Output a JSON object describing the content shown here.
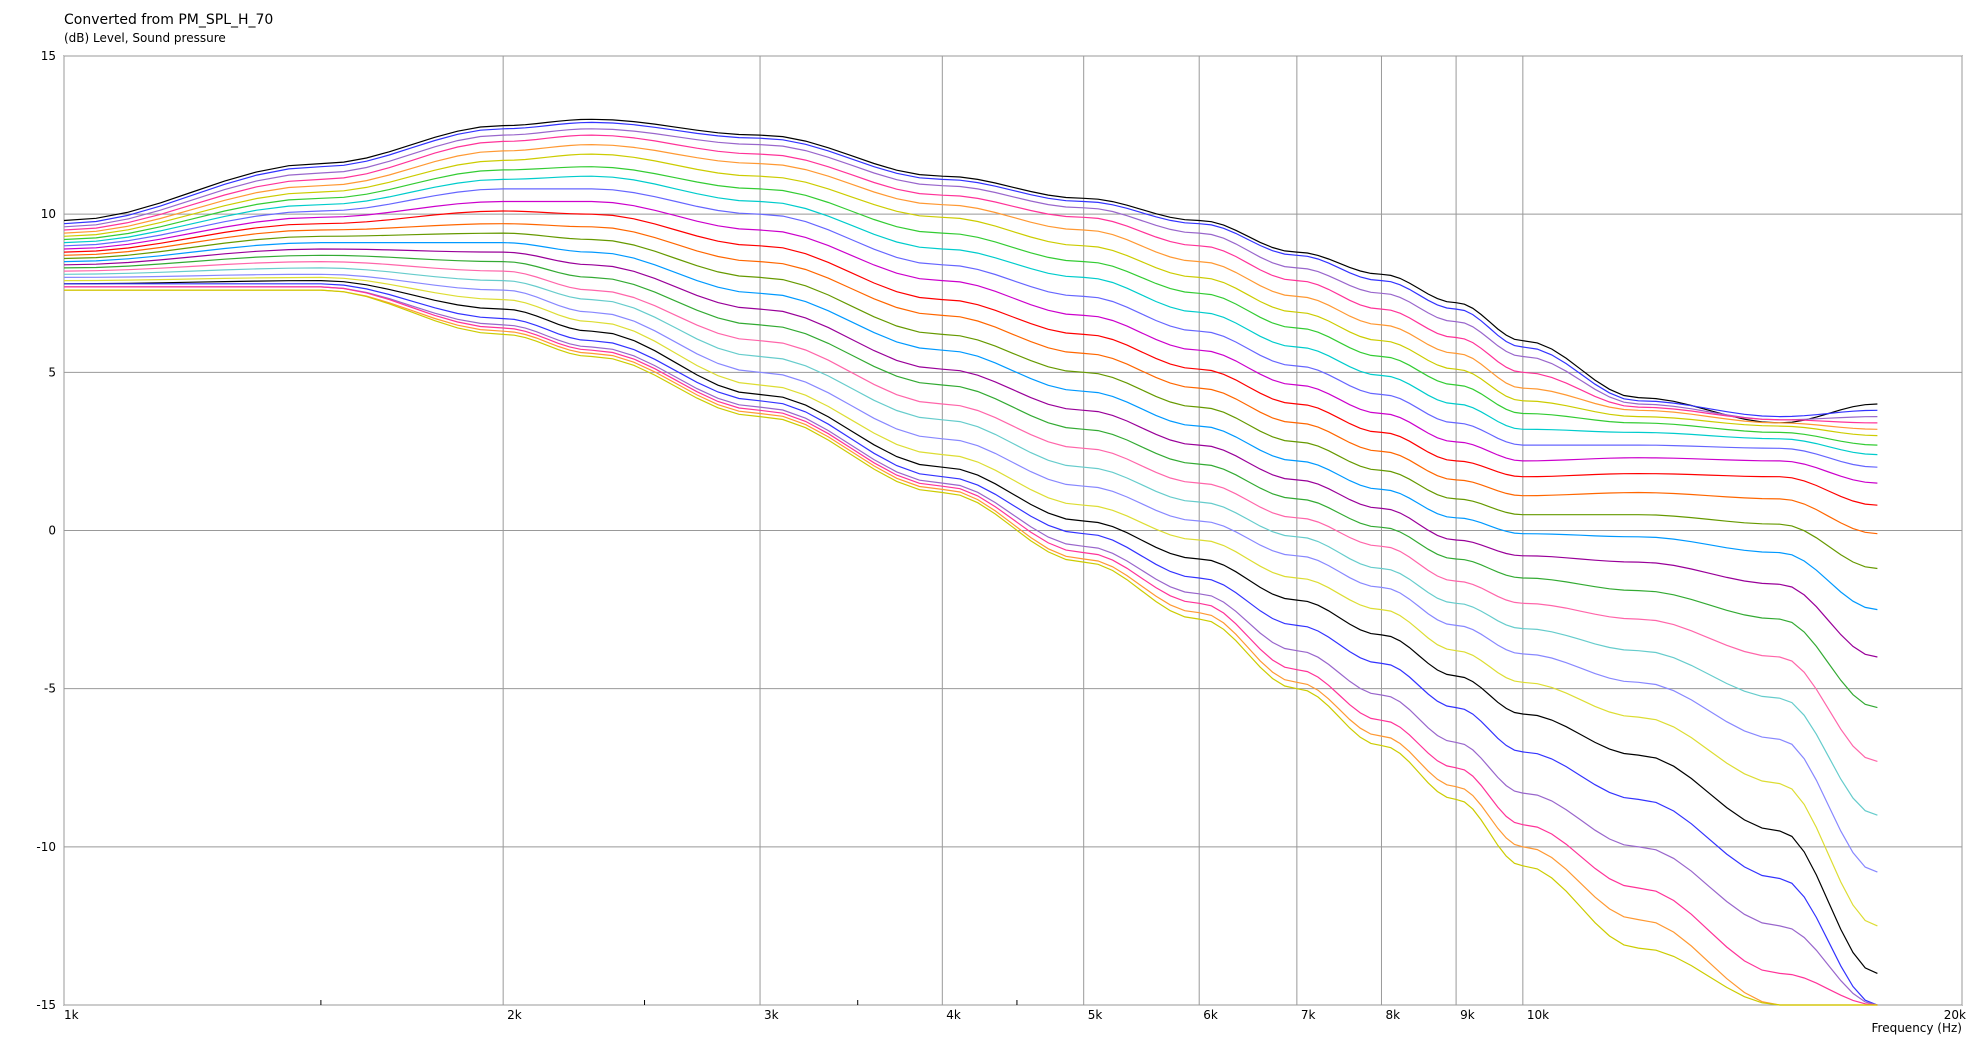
{
  "chart_data": {
    "type": "line",
    "title": "Converted from PM_SPL_H_70",
    "ylabel": "(dB)  Level, Sound pressure",
    "xlabel": "Frequency  (Hz)",
    "x_scale": "log",
    "xlim": [
      1000,
      20000
    ],
    "ylim": [
      -15,
      15
    ],
    "grid": true,
    "legend": "none",
    "y_ticks": [
      15,
      10,
      5,
      0,
      -5,
      -10,
      -15
    ],
    "y_tick_labels": [
      "15",
      "10",
      "5",
      "0",
      "-5",
      "-10",
      "-15"
    ],
    "x_major_ticks": [
      1000,
      2000,
      3000,
      4000,
      5000,
      6000,
      7000,
      8000,
      9000,
      10000,
      20000
    ],
    "x_major_tick_labels": [
      "1k",
      "2k",
      "3k",
      "4k",
      "5k",
      "6k",
      "7k",
      "8k",
      "9k",
      "10k",
      "20k"
    ],
    "x_minor_ticks": [
      1500,
      2500,
      3500,
      4500
    ],
    "colors": [
      "#000000",
      "#3333ff",
      "#9966cc",
      "#ff3399",
      "#ff9933",
      "#cccc00",
      "#33cc33",
      "#00cccc",
      "#6666ff",
      "#cc00cc",
      "#ff0000",
      "#ff6600",
      "#669900",
      "#0099ff",
      "#990099",
      "#33aa33",
      "#ff66aa",
      "#66cccc",
      "#8888ff",
      "#dddd33"
    ],
    "x": [
      1000,
      1500,
      2000,
      2300,
      3000,
      4000,
      5000,
      6000,
      7000,
      8000,
      9000,
      10000,
      12000,
      15000,
      17500
    ],
    "series": [
      {
        "values": [
          9.8,
          11.6,
          12.8,
          13.0,
          12.5,
          11.2,
          10.5,
          9.8,
          8.8,
          8.1,
          7.2,
          6.0,
          4.2,
          3.4,
          4.0
        ]
      },
      {
        "values": [
          9.7,
          11.5,
          12.7,
          12.9,
          12.4,
          11.1,
          10.4,
          9.7,
          8.7,
          7.9,
          7.0,
          5.8,
          4.1,
          3.6,
          3.8
        ]
      },
      {
        "values": [
          9.6,
          11.3,
          12.5,
          12.7,
          12.2,
          10.9,
          10.2,
          9.4,
          8.3,
          7.5,
          6.6,
          5.5,
          4.0,
          3.5,
          3.6
        ]
      },
      {
        "values": [
          9.5,
          11.1,
          12.3,
          12.5,
          11.9,
          10.6,
          9.9,
          9.0,
          7.9,
          7.0,
          6.1,
          5.0,
          3.9,
          3.5,
          3.4
        ]
      },
      {
        "values": [
          9.4,
          10.9,
          12.0,
          12.2,
          11.6,
          10.3,
          9.5,
          8.5,
          7.4,
          6.5,
          5.6,
          4.5,
          3.8,
          3.4,
          3.2
        ]
      },
      {
        "values": [
          9.3,
          10.7,
          11.7,
          11.9,
          11.2,
          9.9,
          9.0,
          8.0,
          6.9,
          6.0,
          5.1,
          4.1,
          3.6,
          3.3,
          3.0
        ]
      },
      {
        "values": [
          9.2,
          10.5,
          11.4,
          11.5,
          10.8,
          9.4,
          8.5,
          7.5,
          6.4,
          5.5,
          4.6,
          3.7,
          3.4,
          3.1,
          2.7
        ]
      },
      {
        "values": [
          9.1,
          10.3,
          11.1,
          11.2,
          10.4,
          8.9,
          8.0,
          6.9,
          5.8,
          4.9,
          4.0,
          3.2,
          3.1,
          2.9,
          2.4
        ]
      },
      {
        "values": [
          9.0,
          10.1,
          10.8,
          10.8,
          10.0,
          8.4,
          7.4,
          6.3,
          5.2,
          4.3,
          3.4,
          2.7,
          2.7,
          2.6,
          2.0
        ]
      },
      {
        "values": [
          8.9,
          9.9,
          10.4,
          10.4,
          9.5,
          7.9,
          6.8,
          5.7,
          4.6,
          3.7,
          2.8,
          2.2,
          2.3,
          2.2,
          1.5
        ]
      },
      {
        "values": [
          8.8,
          9.7,
          10.1,
          10.0,
          9.0,
          7.3,
          6.2,
          5.1,
          4.0,
          3.1,
          2.2,
          1.7,
          1.8,
          1.7,
          0.8
        ]
      },
      {
        "values": [
          8.7,
          9.5,
          9.7,
          9.6,
          8.5,
          6.8,
          5.6,
          4.5,
          3.4,
          2.5,
          1.6,
          1.1,
          1.2,
          1.0,
          -0.1
        ]
      },
      {
        "values": [
          8.6,
          9.3,
          9.4,
          9.2,
          8.0,
          6.2,
          5.0,
          3.9,
          2.8,
          1.9,
          1.0,
          0.5,
          0.5,
          0.2,
          -1.2
        ]
      },
      {
        "values": [
          8.5,
          9.1,
          9.1,
          8.8,
          7.5,
          5.7,
          4.4,
          3.3,
          2.2,
          1.3,
          0.4,
          -0.1,
          -0.2,
          -0.7,
          -2.5
        ]
      },
      {
        "values": [
          8.4,
          8.9,
          8.8,
          8.4,
          7.0,
          5.1,
          3.8,
          2.7,
          1.6,
          0.7,
          -0.3,
          -0.8,
          -1.0,
          -1.7,
          -4.0
        ]
      },
      {
        "values": [
          8.3,
          8.7,
          8.5,
          8.0,
          6.5,
          4.6,
          3.2,
          2.1,
          1.0,
          0.1,
          -0.9,
          -1.5,
          -1.9,
          -2.8,
          -5.6
        ]
      },
      {
        "values": [
          8.2,
          8.5,
          8.2,
          7.6,
          6.0,
          4.0,
          2.6,
          1.5,
          0.4,
          -0.5,
          -1.6,
          -2.3,
          -2.8,
          -4.0,
          -7.3
        ]
      },
      {
        "values": [
          8.1,
          8.3,
          7.9,
          7.3,
          5.5,
          3.5,
          2.0,
          0.9,
          -0.2,
          -1.2,
          -2.3,
          -3.1,
          -3.8,
          -5.3,
          -9.0
        ]
      },
      {
        "values": [
          8.0,
          8.1,
          7.6,
          6.9,
          5.0,
          2.9,
          1.4,
          0.3,
          -0.8,
          -1.8,
          -3.0,
          -3.9,
          -4.8,
          -6.6,
          -10.8
        ]
      },
      {
        "values": [
          7.9,
          8.0,
          7.3,
          6.6,
          4.6,
          2.4,
          0.8,
          -0.3,
          -1.5,
          -2.5,
          -3.8,
          -4.8,
          -5.9,
          -8.0,
          -12.5
        ]
      },
      {
        "values": [
          7.8,
          7.9,
          7.0,
          6.3,
          4.3,
          2.0,
          0.3,
          -0.9,
          -2.2,
          -3.3,
          -4.6,
          -5.8,
          -7.1,
          -9.5,
          -14.0
        ]
      },
      {
        "values": [
          7.8,
          7.8,
          6.7,
          6.0,
          4.1,
          1.7,
          -0.1,
          -1.5,
          -3.0,
          -4.2,
          -5.6,
          -7.0,
          -8.5,
          -11.0,
          -15.0
        ]
      },
      {
        "values": [
          7.7,
          7.7,
          6.5,
          5.8,
          3.9,
          1.5,
          -0.5,
          -2.0,
          -3.8,
          -5.2,
          -6.7,
          -8.3,
          -10.0,
          -12.5,
          -15.0
        ]
      },
      {
        "values": [
          7.7,
          7.7,
          6.4,
          5.7,
          3.8,
          1.4,
          -0.7,
          -2.3,
          -4.4,
          -6.0,
          -7.5,
          -9.3,
          -11.3,
          -14.0,
          -15.0
        ]
      },
      {
        "values": [
          7.6,
          7.6,
          6.3,
          5.6,
          3.7,
          1.3,
          -0.9,
          -2.6,
          -4.8,
          -6.5,
          -8.1,
          -10.0,
          -12.3,
          -15.0,
          -15.0
        ]
      },
      {
        "values": [
          7.6,
          7.6,
          6.2,
          5.5,
          3.6,
          1.2,
          -1.0,
          -2.8,
          -5.0,
          -6.8,
          -8.5,
          -10.6,
          -13.2,
          -15.0,
          -15.0
        ]
      }
    ]
  }
}
